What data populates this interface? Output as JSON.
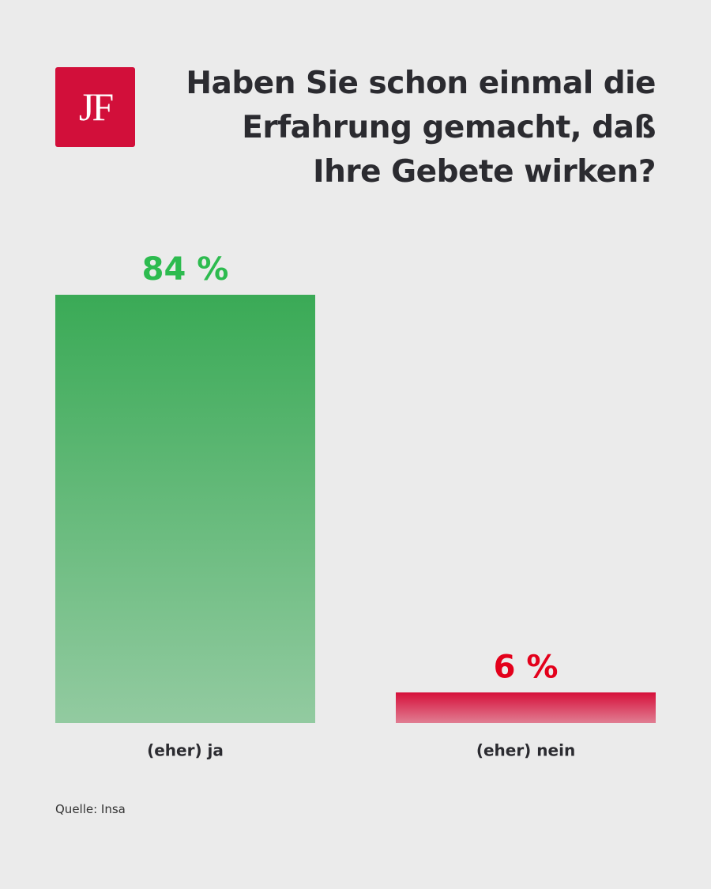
{
  "logo": "JF",
  "chart_data": {
    "type": "bar",
    "title": "Haben Sie schon einmal die Erfahrung gemacht, daß Ihre Gebete wirken?",
    "categories": [
      "(eher) ja",
      "(eher) nein"
    ],
    "values": [
      84,
      6
    ],
    "value_labels": [
      "84 %",
      "6 %"
    ],
    "colors": [
      "#3aaa56",
      "#d6103a"
    ],
    "label_colors": [
      "#2dbb4f",
      "#e3001b"
    ],
    "source": "Quelle: Insa"
  }
}
